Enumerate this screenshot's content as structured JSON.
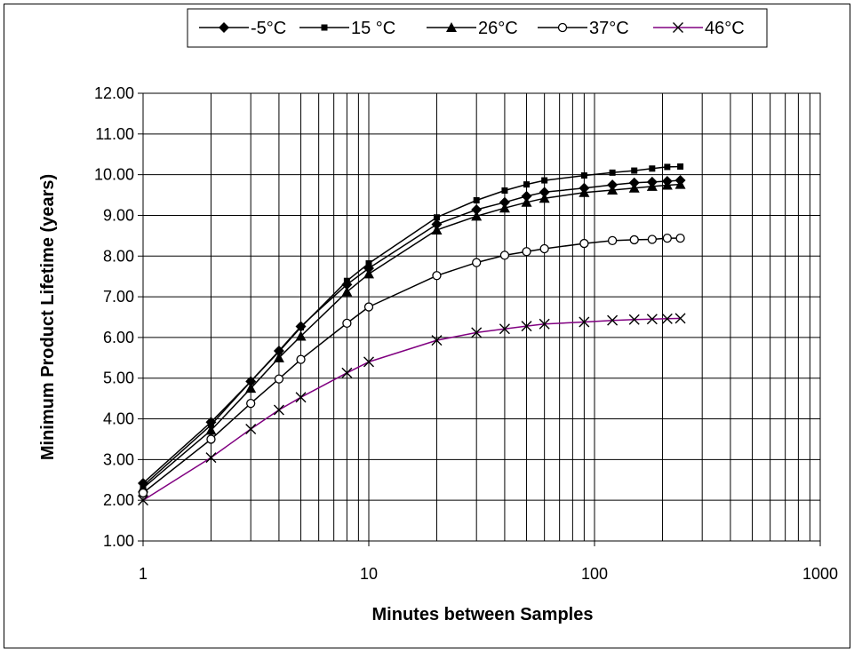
{
  "chart_data": {
    "type": "line",
    "title": "",
    "xlabel": "Minutes between Samples",
    "ylabel": "Minimum Product Lifetime (years)",
    "x_scale": "log",
    "xlim": [
      1,
      1000
    ],
    "ylim": [
      1,
      12
    ],
    "grid": true,
    "legend_position": "top",
    "x_ticks": [
      "1",
      "10",
      "100",
      "1000"
    ],
    "y_ticks": [
      "1.00",
      "2.00",
      "3.00",
      "4.00",
      "5.00",
      "6.00",
      "7.00",
      "8.00",
      "9.00",
      "10.00",
      "11.00",
      "12.00"
    ],
    "x": [
      1,
      2,
      3,
      4,
      5,
      8,
      10,
      20,
      30,
      40,
      50,
      60,
      90,
      120,
      150,
      180,
      210,
      240
    ],
    "series": [
      {
        "name": "-5°C",
        "marker": "diamond",
        "color": "#000000",
        "values": [
          2.42,
          3.92,
          4.92,
          5.67,
          6.27,
          7.3,
          7.7,
          8.78,
          9.14,
          9.32,
          9.47,
          9.57,
          9.67,
          9.75,
          9.8,
          9.82,
          9.84,
          9.86
        ]
      },
      {
        "name": "15 °C",
        "marker": "square",
        "color": "#000000",
        "values": [
          2.35,
          3.85,
          4.92,
          5.65,
          6.25,
          7.39,
          7.82,
          8.95,
          9.37,
          9.61,
          9.76,
          9.86,
          9.98,
          10.05,
          10.1,
          10.15,
          10.19,
          10.2
        ]
      },
      {
        "name": "26°C",
        "marker": "triangle",
        "color": "#000000",
        "values": [
          2.3,
          3.72,
          4.75,
          5.5,
          6.03,
          7.12,
          7.56,
          8.64,
          8.98,
          9.18,
          9.32,
          9.42,
          9.56,
          9.62,
          9.67,
          9.71,
          9.74,
          9.76
        ]
      },
      {
        "name": "37°C",
        "marker": "circle",
        "color": "#000000",
        "values": [
          2.18,
          3.5,
          4.38,
          4.98,
          5.46,
          6.35,
          6.75,
          7.52,
          7.84,
          8.02,
          8.11,
          8.18,
          8.31,
          8.38,
          8.4,
          8.41,
          8.44,
          8.44
        ]
      },
      {
        "name": "46°C",
        "marker": "x",
        "color": "#800080",
        "values": [
          2.0,
          3.05,
          3.75,
          4.22,
          4.53,
          5.13,
          5.4,
          5.93,
          6.12,
          6.21,
          6.28,
          6.33,
          6.38,
          6.42,
          6.44,
          6.45,
          6.46,
          6.47
        ]
      }
    ]
  }
}
